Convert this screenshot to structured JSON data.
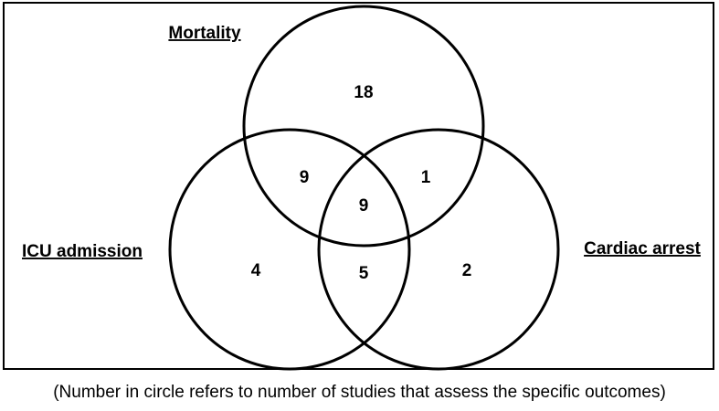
{
  "sets": [
    {
      "id": "mortality",
      "label": "Mortality"
    },
    {
      "id": "icu",
      "label": "ICU admission"
    },
    {
      "id": "cardiac",
      "label": "Cardiac arrest"
    }
  ],
  "regions": {
    "mortality_only": "18",
    "mortality_icu": "9",
    "mortality_cardiac": "1",
    "all_three": "9",
    "icu_only": "4",
    "icu_cardiac": "5",
    "cardiac_only": "2"
  },
  "caption": "(Number in circle refers to number of studies that assess the specific outcomes)"
}
